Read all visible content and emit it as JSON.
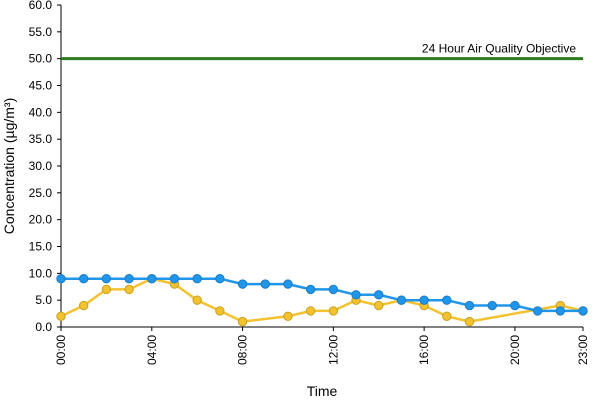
{
  "chart_data": {
    "type": "line",
    "title": "",
    "xlabel": "Time",
    "ylabel": "Concentration (µg/m³)",
    "ylim": [
      0,
      60
    ],
    "y_ticks": [
      "0.0",
      "5.0",
      "10.0",
      "15.0",
      "20.0",
      "25.0",
      "30.0",
      "35.0",
      "40.0",
      "45.0",
      "50.0",
      "55.0",
      "60.0"
    ],
    "x_tick_hours": [
      0,
      4,
      8,
      12,
      16,
      20,
      23
    ],
    "x_tick_labels": [
      "00:00",
      "04:00",
      "08:00",
      "12:00",
      "16:00",
      "20:00",
      "23:00"
    ],
    "grid": false,
    "legend": "none",
    "objective": {
      "value": 50,
      "label": "24 Hour Air Quality Objective",
      "color": "#2e7d1e"
    },
    "series": [
      {
        "color": "#2196e8",
        "x": [
          0,
          1,
          2,
          3,
          4,
          5,
          6,
          7,
          8,
          9,
          10,
          11,
          12,
          13,
          14,
          15,
          16,
          17,
          18,
          19,
          20,
          21,
          22,
          23
        ],
        "y": [
          9,
          9,
          9,
          9,
          9,
          9,
          9,
          9,
          8,
          8,
          8,
          7,
          7,
          6,
          6,
          5,
          5,
          5,
          4,
          4,
          4,
          3,
          3,
          3
        ]
      },
      {
        "color": "#f2c230",
        "x": [
          0,
          1,
          2,
          3,
          4,
          5,
          6,
          7,
          8,
          10,
          11,
          12,
          13,
          14,
          15,
          16,
          17,
          18,
          22,
          23
        ],
        "y": [
          2,
          4,
          7,
          7,
          9,
          8,
          5,
          3,
          1,
          2,
          3,
          3,
          5,
          4,
          5,
          4,
          2,
          1,
          4,
          3
        ]
      }
    ]
  }
}
